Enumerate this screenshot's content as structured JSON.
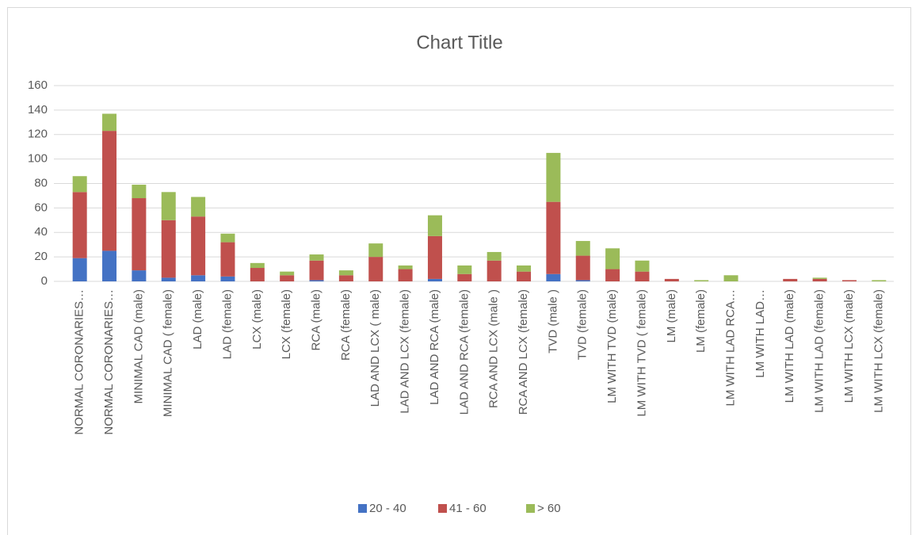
{
  "chart_data": {
    "type": "stacked_bar",
    "title": "Chart Title",
    "categories": [
      "NORMAL CORONARIES…",
      "NORMAL CORONARIES…",
      "MINIMAL CAD (male)",
      "MINIMAL CAD ( female)",
      "LAD (male)",
      "LAD (female)",
      "LCX (male)",
      "LCX (female)",
      "RCA (male)",
      "RCA (female)",
      "LAD AND LCX ( male)",
      "LAD AND LCX (female)",
      "LAD AND RCA (male)",
      "LAD AND RCA (female)",
      "RCA AND LCX (male )",
      "RCA AND LCX (female)",
      "TVD (male )",
      "TVD (female)",
      "LM WITH TVD (male)",
      "LM WITH TVD ( female)",
      "LM (male)",
      "LM (female)",
      "LM WITH LAD RCA…",
      "LM WITH LAD…",
      "LM WITH LAD (male)",
      "LM WITH LAD (female)",
      "LM WITH LCX (male)",
      "LM WITH LCX (female)"
    ],
    "series": [
      {
        "name": "20 - 40",
        "color": "#4472c4",
        "values": [
          19,
          25,
          9,
          3,
          5,
          4,
          0,
          0,
          1,
          0,
          0,
          0,
          2,
          0,
          0,
          0,
          6,
          1,
          0,
          0,
          0,
          0,
          0,
          0,
          0,
          0,
          0,
          0
        ]
      },
      {
        "name": "41 - 60",
        "color": "#c0504d",
        "values": [
          54,
          98,
          59,
          47,
          48,
          28,
          11,
          5,
          16,
          5,
          20,
          10,
          35,
          6,
          17,
          8,
          59,
          20,
          10,
          8,
          2,
          0,
          0,
          0,
          2,
          2,
          1,
          0
        ]
      },
      {
        "name": "> 60",
        "color": "#9bbb59",
        "values": [
          13,
          14,
          11,
          23,
          16,
          7,
          4,
          3,
          5,
          4,
          11,
          3,
          17,
          7,
          7,
          5,
          40,
          12,
          17,
          9,
          0,
          1,
          5,
          0,
          0,
          1,
          0,
          1
        ]
      }
    ],
    "ylim": [
      0,
      160
    ],
    "yticks": [
      0,
      20,
      40,
      60,
      80,
      100,
      120,
      140,
      160
    ],
    "grid": true,
    "legend": "bottom"
  }
}
